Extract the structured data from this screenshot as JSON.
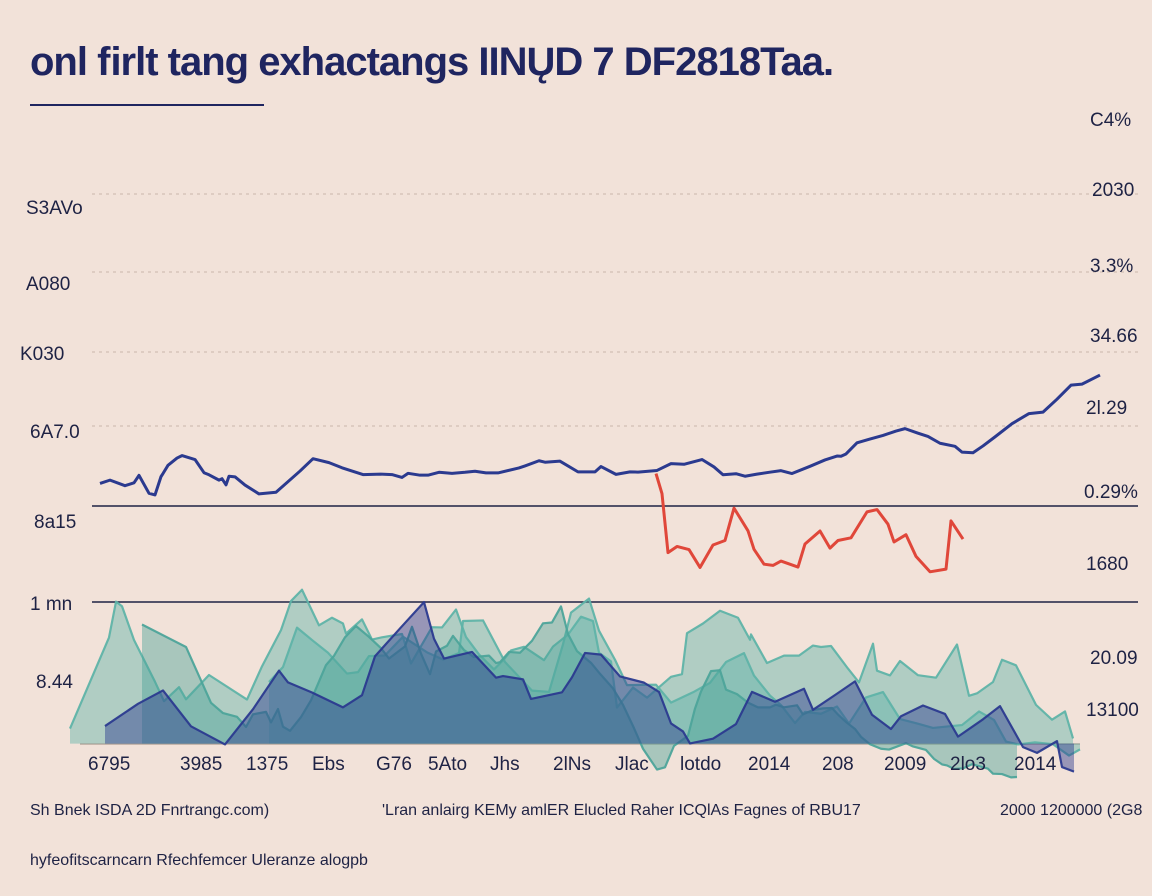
{
  "title": "onl ﬁrlt tang exhactangs IINŲD 7 DF2818Taa.",
  "footer": {
    "left": "Sh Bnek  ISDA  2D Fnrtrangc.com)",
    "center": "'Lran anlairg KEMy amlER Elucled Raher ICQlAs Fagnes of RBU17",
    "right": "2000 1200000 (2G8",
    "bottom": "hyfeofitscarncarn Rfechfemcer Uleranze alogpb"
  },
  "colors": {
    "background": "#f2e2d9",
    "line_blue": "#2b3a8f",
    "line_red": "#e0473a",
    "area_teal": "#5fb3a8",
    "area_teal_dark": "#2b3a8f"
  },
  "chart_data": {
    "type": "line",
    "x_tick_labels": [
      "6795",
      "3985",
      "1375",
      "Ebs",
      "G76",
      "5Ato",
      "Jhs",
      "2lNs",
      "Jlac",
      "lotdo",
      "2014",
      "208",
      "2009",
      "2lo3",
      "2014"
    ],
    "y_left_tick_labels": [
      "S3AVo",
      "A080",
      "K030",
      "6A7.0",
      "8a15",
      "1 mn",
      "8.44"
    ],
    "y_right_tick_labels": [
      "C4%",
      "2030",
      "3.3%",
      "34.66",
      "2l.29",
      "0.29%",
      "1680",
      "20.09",
      "13100"
    ],
    "grid": true,
    "series": [
      {
        "type": "line",
        "color": "#2b3a8f",
        "x": [
          0.0,
          1.0,
          2.5,
          3.4,
          3.9,
          4.9,
          5.5,
          6.1,
          6.3,
          6.8,
          7.7,
          8.2,
          9.5,
          10.4,
          10.9,
          11.9,
          12.2,
          12.6,
          12.9,
          13.5,
          14.5,
          15.9,
          17.6,
          20.0,
          21.3,
          22.9,
          24.2,
          26.3,
          28.1,
          29.2,
          30.2,
          30.8,
          32.0,
          32.8,
          33.9,
          35.2,
          36.5,
          37.5,
          38.6,
          39.8,
          41.9,
          42.5,
          43.9,
          44.5,
          46.0,
          47.8,
          49.5,
          50.1,
          51.6,
          53.0,
          53.8,
          55.7,
          57.1,
          58.4,
          60.2,
          61.4,
          62.3,
          63.6,
          64.5,
          65.7,
          66.9,
          68.1,
          69.2,
          71.0,
          72.5,
          73.7,
          74.1,
          74.6,
          75.7,
          76.9,
          78.3,
          79.6,
          80.5,
          81.8,
          82.8,
          84.0,
          85.5,
          86.2,
          87.3,
          88.3,
          89.5,
          91.2,
          92.9,
          94.3,
          95.7,
          97.1,
          98.2,
          100.0
        ],
        "y": [
          66.3,
          67.9,
          65.2,
          66.6,
          70.2,
          61.5,
          60.7,
          69.6,
          71.1,
          75.1,
          78.6,
          79.8,
          77.9,
          71.5,
          70.5,
          67.9,
          68.6,
          65.6,
          69.8,
          69.5,
          65.5,
          61.2,
          62.0,
          72.3,
          78.3,
          76.4,
          73.9,
          70.6,
          70.8,
          70.6,
          69.2,
          71.2,
          70.3,
          70.3,
          71.7,
          71.2,
          71.7,
          72.2,
          71.4,
          71.4,
          73.8,
          74.8,
          77.3,
          76.6,
          77.1,
          71.9,
          71.9,
          74.5,
          70.7,
          71.9,
          71.8,
          72.6,
          75.9,
          75.6,
          77.9,
          74.3,
          70.5,
          71.0,
          69.8,
          70.8,
          71.7,
          72.5,
          71.1,
          74.6,
          77.7,
          79.6,
          79.5,
          80.6,
          86.0,
          87.7,
          89.6,
          91.7,
          92.9,
          90.7,
          89.1,
          85.8,
          84.3,
          81.5,
          81.2,
          84.5,
          88.9,
          95.3,
          100.2,
          100.9,
          107.2,
          114.0,
          114.5,
          118.9
        ]
      },
      {
        "type": "line",
        "color": "#e0473a",
        "x": [
          55.6,
          56.2,
          56.8,
          57.7,
          58.9,
          60.0,
          61.3,
          62.5,
          63.4,
          64.8,
          65.4,
          66.4,
          67.3,
          68.1,
          69.8,
          70.5,
          72.0,
          73.0,
          73.8,
          75.1,
          76.7,
          77.7,
          78.8,
          79.4,
          80.6,
          81.6,
          83.0,
          84.6,
          85.1,
          86.3
        ],
        "y": [
          71.1,
          61.3,
          32.7,
          35.7,
          34.2,
          25.5,
          36.4,
          38.6,
          54.3,
          43.3,
          34.3,
          27.1,
          26.5,
          28.6,
          25.7,
          36.9,
          43.2,
          34.9,
          38.6,
          39.9,
          52.5,
          53.6,
          46.5,
          37.9,
          41.4,
          30.9,
          23.4,
          24.7,
          48.1,
          39.3
        ]
      },
      {
        "type": "area",
        "color": "#5fb3a8",
        "x": [
          -3.0,
          0.9,
          1.6,
          2.2,
          3.4,
          5.5,
          6.4,
          7.9,
          8.6,
          10.9,
          14.7,
          16.2,
          18.1,
          19.1,
          20.2,
          21.9,
          23.2,
          24.3,
          24.6,
          26.2,
          27.2,
          28.2,
          30.2,
          31.1,
          33.2,
          34.2,
          35.6,
          36.6,
          37.9,
          39.4,
          40.4,
          41.1,
          42.4,
          44.4,
          45.3,
          46.8,
          48.1,
          49.3,
          49.9,
          51.1,
          51.7,
          53.3,
          54.7,
          57.1,
          58.2,
          58.7,
          60.3,
          62.0,
          63.8,
          65.0,
          65.1,
          66.7,
          68.4,
          69.9,
          71.3,
          72.1,
          73.1,
          74.8,
          75.9,
          77.3,
          77.7,
          79.0,
          80.0,
          81.8,
          83.6,
          85.7,
          86.9,
          87.7,
          89.3,
          90.2,
          91.6,
          93.6,
          95.2,
          96.5,
          97.3
        ],
        "y": [
          -52.7,
          -8.5,
          8.9,
          6.7,
          -9.7,
          -30.0,
          -39.4,
          -32.6,
          -38.5,
          -26.7,
          -38.6,
          -22.5,
          -4.9,
          9.2,
          14.7,
          -2.6,
          1.1,
          -1.7,
          -6.6,
          0.3,
          -9.5,
          -8.4,
          -6.8,
          -21.1,
          -3.5,
          -3.6,
          5.1,
          -8.3,
          -16.7,
          -24.0,
          -19.1,
          -14.8,
          -13.0,
          -19.5,
          -12.9,
          -7.1,
          1.6,
          -0.5,
          -15.9,
          -20.1,
          -42.5,
          -32.8,
          -37.7,
          -27.6,
          -26.3,
          -6.4,
          -1.7,
          4.5,
          1.1,
          -9.6,
          -7.0,
          -20.9,
          -17.3,
          -17.3,
          -12.4,
          -13.1,
          -12.6,
          -23.6,
          -30.3,
          -11.5,
          -24.6,
          -26.9,
          -19.9,
          -26.8,
          -28.0,
          -11.9,
          -36.8,
          -35.6,
          -30.1,
          -19.3,
          -22.0,
          -41.2,
          -48.4,
          -44.4,
          -57.5
        ]
      },
      {
        "type": "area",
        "color": "#5fb3a8",
        "x": [
          16.9,
          18.3,
          19.7,
          21.3,
          22.8,
          24.7,
          25.8,
          26.9,
          28.5,
          30.3,
          32.7,
          34.3,
          35.9,
          36.3,
          38.3,
          40.5,
          43.2,
          44.9,
          46.3,
          47.1,
          48.9,
          49.9,
          51.5,
          52.7,
          54.1,
          55.6,
          57.1,
          59.3,
          61.0,
          62.6,
          64.4,
          65.4,
          67.0,
          68.1,
          69.5,
          70.5,
          72.1,
          73.7,
          74.9,
          76.6,
          78.3,
          80.0,
          81.7,
          83.3,
          84.9,
          86.2,
          87.9,
          89.4,
          90.6,
          91.8,
          93.5,
          95.3,
          96.9,
          98.0
        ],
        "y": [
          -30.1,
          -22.8,
          -3.7,
          -10.1,
          -15.9,
          -26.0,
          -25.3,
          -17.5,
          -17.2,
          -8.1,
          -15.7,
          -19.2,
          -16.0,
          -0.5,
          -0.2,
          -20.4,
          -34.3,
          -34.9,
          -11.8,
          3.6,
          10.4,
          -5.2,
          -19.3,
          -31.6,
          -31.5,
          -31.4,
          -40.1,
          -35.1,
          -30.5,
          -20.4,
          -16.1,
          -27.0,
          -36.7,
          -41.3,
          -50.0,
          -44.6,
          -45.5,
          -42.0,
          -50.3,
          -37.6,
          -35.0,
          -48.1,
          -50.2,
          -52.4,
          -51.6,
          -51.0,
          -44.4,
          -48.5,
          -59.0,
          -60.4,
          -59.4,
          -60.3,
          -65.8,
          -62.8
        ]
      },
      {
        "type": "area",
        "color": "#4da49a",
        "x": [
          4.2,
          8.6,
          11.1,
          12.3,
          13.7,
          14.6,
          15.3,
          16.6,
          17.1,
          17.8,
          18.3,
          19.0,
          20.1,
          21.1,
          22.6,
          23.4,
          24.5,
          25.6,
          26.9,
          28.1,
          28.9,
          30.5,
          31.2,
          32.1,
          33.0,
          33.6,
          34.7,
          35.3,
          36.4,
          37.4,
          38.9,
          39.6,
          40.0,
          40.9,
          42.0,
          43.2,
          44.3,
          45.2,
          46.1,
          46.8,
          47.7,
          49.1,
          50.0,
          51.3,
          52.3,
          53.4,
          54.3,
          55.7,
          56.5,
          57.4,
          58.8,
          59.5,
          60.1,
          61.1,
          62.0,
          62.6,
          63.7,
          64.8,
          65.8,
          67.0,
          67.6,
          68.4,
          69.7,
          70.3,
          71.3,
          72.3,
          73.2,
          73.8,
          74.6,
          75.5,
          76.1,
          77.0,
          78.1,
          78.9,
          80.6,
          81.3,
          82.6,
          83.4,
          84.2,
          84.7,
          85.4,
          86.3,
          87.2,
          88.0,
          88.8,
          89.3,
          90.2,
          91.1,
          91.7
        ],
        "y": [
          -2.2,
          -13.1,
          -40.2,
          -45.2,
          -47.0,
          -51.9,
          -45.8,
          -44.6,
          -49.7,
          -43.2,
          -51.8,
          -53.8,
          -47.1,
          -39.0,
          -21.9,
          -17.4,
          -8.4,
          -2.9,
          -8.2,
          -13.7,
          -18.7,
          -12.8,
          -3.3,
          -16.3,
          -26.3,
          -15.3,
          -12.5,
          -7.7,
          -14.6,
          -18.0,
          -17.3,
          -20.9,
          -20.5,
          -15.5,
          -15.9,
          -10.1,
          -1.6,
          -1.2,
          6.6,
          -6.8,
          -15.1,
          -20.8,
          -26.1,
          -33.2,
          -41.2,
          -52.5,
          -62.5,
          -72.6,
          -71.5,
          -61.1,
          -56.2,
          -43.0,
          -34.7,
          -24.8,
          -24.4,
          -33.8,
          -36.0,
          -40.1,
          -42.4,
          -42.4,
          -41.1,
          -42.4,
          -41.4,
          -45.8,
          -43.7,
          -42.9,
          -42.7,
          -45.9,
          -49.5,
          -52.9,
          -56.7,
          -60.3,
          -62.5,
          -62.9,
          -59.8,
          -61.4,
          -63.1,
          -67.4,
          -70.1,
          -70.6,
          -72.3,
          -72.0,
          -70.0,
          -71.1,
          -72.2,
          -74.6,
          -74.8,
          -76.4,
          -76.2
        ]
      },
      {
        "type": "area",
        "color": "#2b3a8f",
        "x": [
          0.5,
          3.8,
          6.3,
          9.1,
          12.5,
          15.3,
          17.9,
          18.8,
          21.2,
          24.3,
          26.2,
          27.5,
          30.0,
          32.4,
          33.4,
          34.4,
          37.2,
          39.6,
          40.3,
          42.3,
          43.1,
          46.2,
          47.2,
          48.5,
          50.1,
          52.0,
          54.4,
          55.9,
          57.1,
          58.3,
          59.0,
          61.3,
          63.6,
          65.2,
          67.5,
          70.4,
          71.3,
          73.6,
          75.5,
          77.2,
          79.1,
          80.1,
          82.3,
          84.5,
          85.8,
          88.3,
          90.0,
          92.3,
          93.7,
          95.7,
          96.2,
          97.4
        ],
        "y": [
          -51.5,
          -40.7,
          -34.2,
          -51.6,
          -60.4,
          -43.3,
          -24.6,
          -30.3,
          -35.2,
          -42.4,
          -36.5,
          -17.6,
          -4.1,
          8.7,
          -9.1,
          -18.7,
          -15.5,
          -28.0,
          -27.2,
          -28.8,
          -38.3,
          -35.1,
          -27.8,
          -16.0,
          -16.8,
          -27.4,
          -30.4,
          -34.9,
          -50.2,
          -54.1,
          -59.9,
          -57.6,
          -50.5,
          -34.9,
          -39.7,
          -33.4,
          -43.6,
          -36.1,
          -29.8,
          -46.0,
          -52.9,
          -46.7,
          -41.5,
          -45.6,
          -56.6,
          -48.2,
          -41.8,
          -61.7,
          -64.5,
          -58.8,
          -71.4,
          -73.6
        ]
      }
    ]
  }
}
